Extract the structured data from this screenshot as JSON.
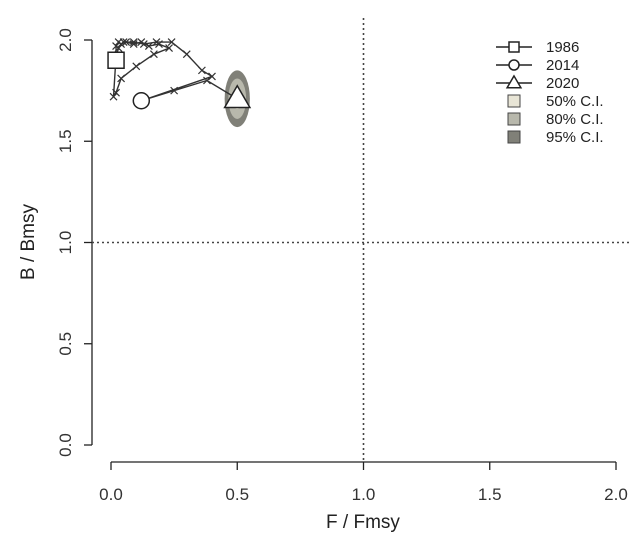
{
  "chart_data": {
    "type": "scatter",
    "xlabel": "F / Fmsy",
    "ylabel": "B / Bmsy",
    "xlim": [
      0,
      2.0
    ],
    "ylim": [
      0,
      2.0
    ],
    "x_ticks": [
      0.0,
      0.5,
      1.0,
      1.5,
      2.0
    ],
    "x_tick_labels": [
      "0.0",
      "0.5",
      "1.0",
      "1.5",
      "2.0"
    ],
    "y_ticks": [
      0.0,
      0.5,
      1.0,
      1.5,
      2.0
    ],
    "y_tick_labels": [
      "0.0",
      "0.5",
      "1.0",
      "1.5",
      "2.0"
    ],
    "reference_lines": {
      "x": 1.0,
      "y": 1.0,
      "style": "dotted"
    },
    "trajectory": {
      "x": [
        0.02,
        0.02,
        0.03,
        0.04,
        0.06,
        0.09,
        0.12,
        0.15,
        0.19,
        0.23,
        0.17,
        0.1,
        0.04,
        0.02,
        0.01,
        0.02,
        0.03,
        0.05,
        0.09,
        0.13,
        0.18,
        0.24,
        0.3,
        0.36,
        0.4,
        0.12,
        0.25,
        0.38,
        0.5
      ],
      "y": [
        1.9,
        1.97,
        1.99,
        1.98,
        1.99,
        1.98,
        1.99,
        1.97,
        1.98,
        1.96,
        1.93,
        1.87,
        1.81,
        1.74,
        1.72,
        1.92,
        1.96,
        1.99,
        1.99,
        1.98,
        1.99,
        1.99,
        1.93,
        1.85,
        1.82,
        1.7,
        1.75,
        1.8,
        1.71
      ]
    },
    "markers": [
      {
        "label": "1986",
        "shape": "square",
        "x": 0.02,
        "y": 1.9
      },
      {
        "label": "2014",
        "shape": "circle",
        "x": 0.12,
        "y": 1.7
      },
      {
        "label": "2020",
        "shape": "triangle",
        "x": 0.5,
        "y": 1.71
      }
    ],
    "confidence_regions": {
      "center": {
        "x": 0.5,
        "y": 1.71
      },
      "levels": [
        {
          "label": "50% C.I.",
          "color": "#e8e5d6",
          "rx": 0.02,
          "ry": 0.05
        },
        {
          "label": "80% C.I.",
          "color": "#b8b8ac",
          "rx": 0.035,
          "ry": 0.1
        },
        {
          "label": "95% C.I.",
          "color": "#808078",
          "rx": 0.05,
          "ry": 0.14
        }
      ]
    },
    "legend": {
      "position": "top-right",
      "items": [
        "1986",
        "2014",
        "2020",
        "50% C.I.",
        "80% C.I.",
        "95% C.I."
      ]
    }
  }
}
